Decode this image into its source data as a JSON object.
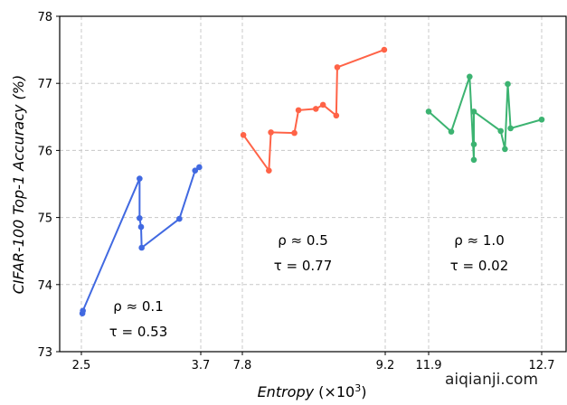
{
  "chart_data": {
    "type": "line",
    "xlabel": "Entropy (×10³)",
    "xlabel_main": "Entropy",
    "xlabel_unit": "(×10",
    "xlabel_exp": "3",
    "xlabel_close": ")",
    "ylabel": "CIFAR-100 Top-1 Accuracy (%)",
    "ylim": [
      73,
      78
    ],
    "yticks": [
      "73",
      "74",
      "75",
      "76",
      "77",
      "78"
    ],
    "x_axis_broken": true,
    "x_segments": [
      {
        "range": [
          2.5,
          3.7
        ],
        "ticks": [
          "2.5",
          "3.7"
        ]
      },
      {
        "range": [
          7.8,
          9.2
        ],
        "ticks": [
          "7.8",
          "9.2"
        ]
      },
      {
        "range": [
          11.9,
          12.7
        ],
        "ticks": [
          "11.9",
          "12.7"
        ]
      }
    ],
    "grid": true,
    "series": [
      {
        "name": "rho-0.1",
        "color": "#4169e1",
        "segment": 0,
        "x": [
          2.51,
          2.515,
          3.085,
          3.085,
          3.1,
          3.106,
          3.485,
          3.643,
          3.685
        ],
        "y": [
          73.57,
          73.61,
          75.58,
          74.99,
          74.86,
          74.55,
          74.98,
          75.7,
          75.75
        ],
        "annotation": [
          "ρ ≈ 0.1",
          "τ = 0.53"
        ]
      },
      {
        "name": "rho-0.5",
        "color": "#ff6347",
        "segment": 1,
        "x": [
          7.81,
          8.06,
          8.08,
          8.31,
          8.35,
          8.52,
          8.59,
          8.72,
          8.73,
          9.19
        ],
        "y": [
          76.23,
          75.7,
          76.27,
          76.26,
          76.6,
          76.62,
          76.68,
          76.52,
          77.24,
          77.5
        ],
        "annotation": [
          "ρ ≈ 0.5",
          "τ = 0.77"
        ]
      },
      {
        "name": "rho-1.0",
        "color": "#3cb371",
        "segment": 2,
        "x": [
          11.9,
          12.06,
          12.19,
          12.22,
          12.22,
          12.22,
          12.41,
          12.44,
          12.46,
          12.48,
          12.7
        ],
        "y": [
          76.58,
          76.28,
          77.1,
          75.86,
          76.09,
          76.58,
          76.29,
          76.02,
          76.99,
          76.33,
          76.46
        ],
        "annotation": [
          "ρ ≈ 1.0",
          "τ = 0.02"
        ]
      }
    ]
  },
  "watermark": "aiqianji.com"
}
